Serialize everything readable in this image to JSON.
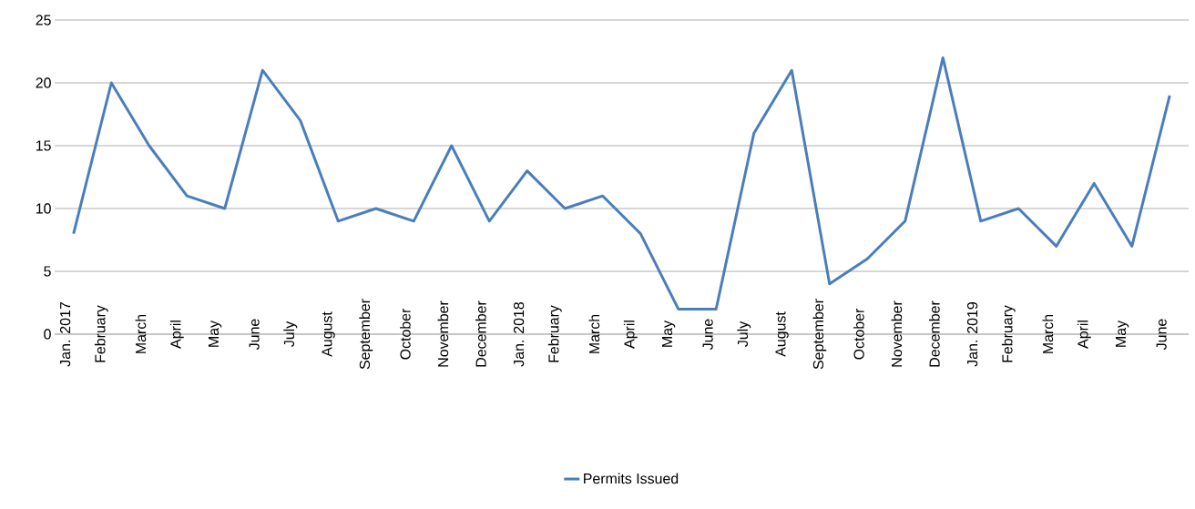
{
  "chart_data": {
    "type": "line",
    "categories": [
      "Jan. 2017",
      "February",
      "March",
      "April",
      "May",
      "June",
      "July",
      "August",
      "September",
      "October",
      "November",
      "December",
      "Jan. 2018",
      "February",
      "March",
      "April",
      "May",
      "June",
      "July",
      "August",
      "September",
      "October",
      "November",
      "December",
      "Jan. 2019",
      "February",
      "March",
      "April",
      "May",
      "June"
    ],
    "series": [
      {
        "name": "Permits Issued",
        "color": "#4a7ebb",
        "values": [
          8,
          20,
          15,
          11,
          10,
          21,
          17,
          9,
          10,
          9,
          15,
          9,
          13,
          10,
          11,
          8,
          2,
          2,
          16,
          21,
          4,
          6,
          9,
          22,
          9,
          10,
          7,
          12,
          7,
          19
        ]
      }
    ],
    "ylim": [
      0,
      25
    ],
    "yticks": [
      0,
      5,
      10,
      15,
      20,
      25
    ],
    "grid": "y",
    "legend": "bottom"
  }
}
